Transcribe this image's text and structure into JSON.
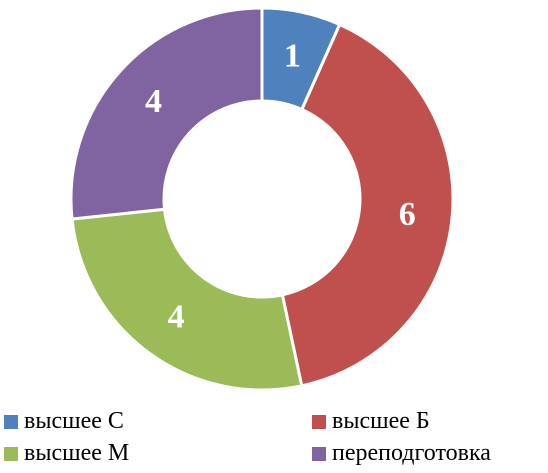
{
  "chart_data": {
    "type": "pie",
    "title": "",
    "donut": true,
    "categories": [
      "высшее С",
      "высшее Б",
      "высшее М",
      "переподготовка"
    ],
    "values": [
      1,
      6,
      4,
      4
    ],
    "colors": [
      "#4F81BD",
      "#C0504D",
      "#9BBB59",
      "#8064A2"
    ],
    "data_labels": [
      "1",
      "6",
      "4",
      "4"
    ],
    "legend": {
      "position": "bottom",
      "entries": [
        "высшее С",
        "высшее Б",
        "высшее М",
        "переподготовка"
      ]
    }
  }
}
